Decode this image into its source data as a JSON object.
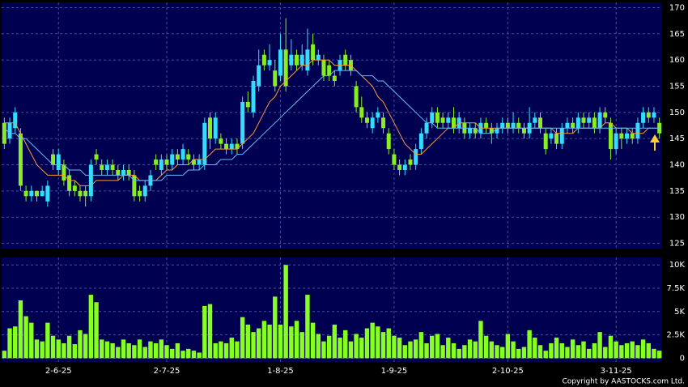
{
  "chart_data": [
    {
      "type": "candlestick",
      "up_color": "#33ddff",
      "down_color": "#88ee22",
      "grid": true,
      "categories": [
        null,
        null,
        null,
        null,
        null,
        null,
        null,
        null,
        null,
        null,
        "2-6-25",
        null,
        null,
        null,
        null,
        null,
        null,
        null,
        null,
        null,
        null,
        null,
        null,
        null,
        null,
        null,
        null,
        null,
        null,
        null,
        "2-7-25",
        null,
        null,
        null,
        null,
        null,
        null,
        null,
        null,
        null,
        null,
        null,
        null,
        null,
        null,
        null,
        null,
        null,
        null,
        null,
        null,
        "1-8-25",
        null,
        null,
        null,
        null,
        null,
        null,
        null,
        null,
        null,
        null,
        null,
        null,
        null,
        null,
        null,
        null,
        null,
        null,
        null,
        null,
        "1-9-25",
        null,
        null,
        null,
        null,
        null,
        null,
        null,
        null,
        null,
        null,
        null,
        null,
        null,
        null,
        null,
        null,
        null,
        null,
        null,
        null,
        "2-10-25",
        null,
        null,
        null,
        null,
        null,
        null,
        null,
        null,
        null,
        null,
        null,
        null,
        null,
        null,
        null,
        null,
        null,
        null,
        null,
        "3-11-25",
        null,
        null,
        null,
        null,
        null,
        null,
        null,
        null
      ],
      "open": [
        148,
        145,
        147,
        146,
        135,
        134,
        135,
        134,
        133,
        142,
        139,
        140,
        138,
        136,
        135,
        135,
        134,
        142,
        140,
        139,
        140,
        139,
        138,
        139,
        138,
        135,
        134,
        136,
        141,
        139,
        141,
        140,
        142,
        141,
        142,
        141,
        140,
        140,
        149,
        145,
        145,
        144,
        143,
        144,
        144,
        152,
        150,
        155,
        161,
        159,
        158,
        157,
        162,
        159,
        161,
        159,
        158,
        163,
        160,
        160,
        159,
        157,
        158,
        161,
        160,
        155,
        151,
        149,
        147,
        149,
        149,
        146,
        142,
        140,
        139,
        141,
        140,
        143,
        146,
        148,
        150,
        149,
        148,
        149,
        147,
        148,
        146,
        147,
        146,
        148,
        147,
        146,
        147,
        148,
        147,
        148,
        147,
        146,
        148,
        149,
        146,
        145,
        146,
        144,
        147,
        148,
        147,
        149,
        148,
        149,
        147,
        150,
        148,
        143,
        146,
        145,
        146,
        145,
        148,
        150,
        149,
        148
      ],
      "high": [
        149,
        149,
        151,
        147,
        136,
        136,
        135,
        136,
        137,
        143,
        143,
        141,
        139,
        137,
        136,
        136,
        141,
        143,
        141,
        141,
        141,
        140,
        140,
        140,
        139,
        136,
        137,
        139,
        142,
        142,
        142,
        143,
        143,
        144,
        143,
        142,
        142,
        149,
        150,
        150,
        146,
        145,
        145,
        145,
        153,
        154,
        157,
        162,
        162,
        163,
        160,
        165,
        168,
        164,
        162,
        163,
        166,
        165,
        162,
        161,
        160,
        158,
        161,
        162,
        161,
        156,
        153,
        150,
        150,
        151,
        150,
        147,
        143,
        141,
        141,
        142,
        144,
        147,
        149,
        151,
        151,
        150,
        150,
        151,
        150,
        149,
        148,
        148,
        149,
        149,
        148,
        148,
        149,
        149,
        150,
        149,
        148,
        151,
        150,
        150,
        147,
        147,
        147,
        148,
        149,
        149,
        150,
        150,
        150,
        150,
        151,
        151,
        149,
        147,
        147,
        147,
        147,
        149,
        151,
        151,
        151,
        149
      ],
      "low": [
        143,
        144,
        146,
        135,
        133,
        133,
        133,
        134,
        132,
        139,
        138,
        136,
        134,
        134,
        133,
        132,
        133,
        140,
        138,
        138,
        138,
        137,
        137,
        137,
        133,
        133,
        133,
        135,
        139,
        138,
        139,
        139,
        140,
        140,
        140,
        139,
        139,
        139,
        143,
        144,
        143,
        142,
        142,
        142,
        143,
        150,
        149,
        154,
        158,
        158,
        154,
        156,
        154,
        158,
        158,
        158,
        157,
        159,
        159,
        156,
        156,
        155,
        157,
        158,
        157,
        150,
        148,
        147,
        146,
        148,
        146,
        142,
        139,
        138,
        138,
        139,
        139,
        142,
        145,
        147,
        147,
        147,
        147,
        146,
        146,
        145,
        145,
        145,
        145,
        146,
        144,
        145,
        146,
        146,
        146,
        146,
        145,
        145,
        147,
        146,
        142,
        144,
        143,
        143,
        146,
        146,
        146,
        147,
        147,
        146,
        146,
        148,
        141,
        142,
        143,
        144,
        144,
        144,
        147,
        148,
        148,
        145
      ],
      "close": [
        144,
        148,
        150,
        136,
        134,
        135,
        134,
        135,
        136,
        140,
        142,
        137,
        135,
        135,
        134,
        134,
        140,
        141,
        139,
        140,
        139,
        138,
        139,
        138,
        134,
        134,
        136,
        138,
        140,
        141,
        140,
        142,
        141,
        143,
        141,
        140,
        141,
        148,
        145,
        149,
        144,
        143,
        144,
        143,
        152,
        151,
        156,
        159,
        159,
        160,
        155,
        162,
        155,
        161,
        159,
        161,
        162,
        160,
        161,
        157,
        157,
        156,
        160,
        159,
        158,
        151,
        149,
        148,
        149,
        150,
        147,
        143,
        140,
        139,
        140,
        140,
        143,
        146,
        148,
        150,
        148,
        148,
        149,
        147,
        149,
        146,
        147,
        146,
        148,
        147,
        146,
        147,
        148,
        147,
        148,
        147,
        146,
        148,
        149,
        147,
        143,
        146,
        144,
        147,
        148,
        147,
        149,
        148,
        149,
        147,
        150,
        149,
        143,
        146,
        145,
        146,
        145,
        148,
        150,
        149,
        150,
        146
      ],
      "series": [
        {
          "color": "#ff9933",
          "values": [
            148,
            148,
            148,
            146,
            144,
            142,
            140,
            139,
            138,
            138,
            138,
            138,
            137,
            137,
            136,
            136,
            136,
            137,
            137,
            137,
            137,
            137,
            138,
            138,
            138,
            137,
            137,
            137,
            137,
            138,
            139,
            139,
            140,
            140,
            140,
            141,
            141,
            141,
            142,
            143,
            143,
            143,
            143,
            143,
            144,
            145,
            146,
            148,
            150,
            152,
            153,
            155,
            156,
            157,
            158,
            159,
            159,
            160,
            160,
            160,
            160,
            159,
            159,
            159,
            159,
            158,
            157,
            156,
            155,
            153,
            152,
            150,
            148,
            146,
            144,
            143,
            142,
            142,
            143,
            144,
            145,
            146,
            147,
            147,
            148,
            148,
            148,
            148,
            147,
            147,
            147,
            147,
            147,
            147,
            147,
            147,
            147,
            147,
            147,
            147,
            147,
            147,
            146,
            146,
            146,
            146,
            147,
            147,
            147,
            147,
            147,
            148,
            148,
            147,
            147,
            147,
            146,
            146,
            146,
            147,
            147,
            147
          ]
        },
        {
          "color": "#66bbff",
          "values": [
            147,
            146,
            146,
            145,
            145,
            144,
            143,
            142,
            141,
            140,
            140,
            140,
            139,
            139,
            139,
            138,
            138,
            138,
            138,
            138,
            138,
            138,
            138,
            138,
            137,
            137,
            137,
            137,
            137,
            137,
            138,
            138,
            138,
            138,
            139,
            139,
            139,
            140,
            140,
            140,
            141,
            141,
            141,
            142,
            142,
            143,
            144,
            145,
            146,
            147,
            148,
            149,
            150,
            151,
            152,
            153,
            154,
            155,
            156,
            157,
            157,
            158,
            158,
            158,
            158,
            158,
            157,
            157,
            157,
            156,
            156,
            155,
            154,
            153,
            152,
            151,
            150,
            149,
            148,
            148,
            147,
            147,
            147,
            147,
            147,
            147,
            147,
            147,
            146,
            146,
            146,
            147,
            147,
            147,
            147,
            147,
            147,
            147,
            147,
            147,
            147,
            147,
            147,
            147,
            147,
            147,
            147,
            147,
            147,
            147,
            147,
            147,
            147,
            147,
            147,
            147,
            147,
            147,
            147,
            147,
            147,
            147
          ]
        }
      ],
      "ylim": [
        124,
        171
      ],
      "yticks": [
        125,
        130,
        135,
        140,
        145,
        150,
        155,
        160,
        165,
        170
      ]
    },
    {
      "type": "bar",
      "color": "#88ff22",
      "grid": true,
      "values": [
        0.8,
        3.2,
        3.4,
        6.2,
        4.5,
        3.8,
        2.0,
        1.8,
        3.8,
        2.4,
        2.0,
        1.6,
        2.4,
        1.5,
        3.0,
        2.6,
        6.8,
        6.0,
        2.0,
        1.8,
        1.6,
        1.2,
        2.0,
        1.6,
        1.4,
        2.0,
        1.2,
        1.8,
        1.6,
        2.0,
        1.4,
        1.0,
        1.6,
        0.8,
        1.0,
        0.8,
        0.6,
        5.6,
        5.8,
        1.6,
        1.8,
        1.6,
        2.2,
        1.8,
        4.4,
        3.6,
        2.8,
        3.2,
        4.0,
        3.6,
        6.6,
        3.6,
        10.0,
        3.4,
        4.0,
        2.8,
        6.8,
        3.8,
        2.6,
        1.8,
        2.4,
        3.6,
        2.2,
        3.0,
        1.8,
        2.6,
        2.2,
        3.2,
        3.8,
        3.4,
        2.8,
        3.2,
        2.4,
        2.2,
        1.4,
        1.8,
        2.0,
        2.8,
        1.6,
        2.4,
        2.6,
        1.4,
        2.2,
        1.6,
        1.0,
        1.4,
        2.0,
        1.8,
        4.0,
        2.4,
        1.8,
        1.4,
        1.2,
        2.6,
        1.8,
        1.0,
        1.2,
        3.0,
        2.2,
        1.4,
        0.8,
        1.6,
        2.2,
        1.6,
        1.2,
        2.0,
        1.4,
        1.8,
        1.0,
        1.6,
        2.8,
        1.2,
        2.4,
        1.8,
        1.4,
        1.6,
        1.8,
        1.4,
        2.0,
        1.6,
        1.0,
        0.8
      ],
      "ylim": [
        -0.4,
        10.8
      ],
      "yticks": [
        0,
        {
          "value": 2.5,
          "label": "2.5K"
        },
        {
          "value": 5,
          "label": "5K"
        },
        {
          "value": 7.5,
          "label": "7.5K"
        },
        {
          "value": 10,
          "label": "10K"
        }
      ]
    }
  ],
  "copyright": "Copyright by AASTOCKS.com Ltd."
}
